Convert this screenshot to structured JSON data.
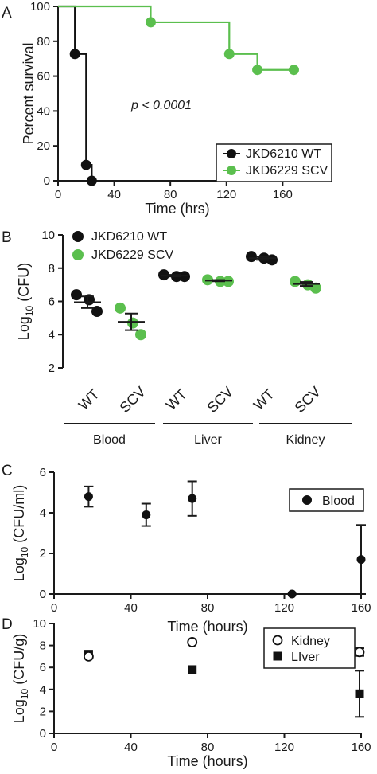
{
  "colors": {
    "wt": "#111111",
    "scv": "#5bbf4e",
    "axis": "#1a1a1a"
  },
  "panels": {
    "A": {
      "label": "A",
      "ylabel": "Percent survival",
      "xlabel": "Time (hrs)",
      "annotation": "p < 0.0001",
      "legend": [
        "JKD6210 WT",
        "JKD6229 SCV"
      ]
    },
    "B": {
      "label": "B",
      "ylabel": "Log10 (CFU)",
      "legend": [
        "JKD6210 WT",
        "JKD6229 SCV"
      ],
      "groups": [
        "Blood",
        "Liver",
        "Kidney"
      ]
    },
    "C": {
      "label": "C",
      "ylabel": "Log10 (CFU/ml)",
      "xlabel": "Time (hours)",
      "legend": [
        "Blood"
      ]
    },
    "D": {
      "label": "D",
      "ylabel": "Log10 (CFU/g)",
      "xlabel": "Time (hours)",
      "legend": [
        "Kidney",
        "LIver"
      ]
    }
  },
  "chart_data": [
    {
      "panel": "A",
      "type": "line",
      "ylabel": "Percent survival",
      "xlabel": "Time (hrs)",
      "xlim": [
        0,
        170
      ],
      "ylim": [
        0,
        100
      ],
      "xticks": [
        0,
        40,
        80,
        120,
        160
      ],
      "yticks": [
        0,
        20,
        40,
        60,
        80,
        100
      ],
      "series": [
        {
          "name": "JKD6210 WT",
          "color": "#111111",
          "steps": [
            [
              0,
              100
            ],
            [
              12,
              72.7
            ],
            [
              20,
              9.1
            ],
            [
              24,
              0
            ]
          ],
          "markers": [
            [
              12,
              72.7
            ],
            [
              20,
              9.1
            ],
            [
              24,
              0
            ]
          ]
        },
        {
          "name": "JKD6229 SCV",
          "color": "#5bbf4e",
          "steps": [
            [
              0,
              100
            ],
            [
              66,
              90.9
            ],
            [
              122,
              72.7
            ],
            [
              142,
              63.6
            ],
            [
              168,
              63.6
            ]
          ],
          "markers": [
            [
              66,
              90.9
            ],
            [
              122,
              72.7
            ],
            [
              142,
              63.6
            ],
            [
              168,
              63.6
            ]
          ]
        }
      ],
      "annotation": "p < 0.0001"
    },
    {
      "panel": "B",
      "type": "scatter",
      "ylabel": "Log10 (CFU)",
      "ylim": [
        2,
        10
      ],
      "yticks": [
        2,
        4,
        6,
        8,
        10
      ],
      "categories": [
        "WT",
        "SCV",
        "WT",
        "SCV",
        "WT",
        "SCV"
      ],
      "groups": [
        "Blood",
        "Liver",
        "Kidney"
      ],
      "series": [
        {
          "name": "JKD6210 WT",
          "color": "#111111",
          "columns": [
            0,
            2,
            4
          ],
          "points": [
            [
              6.4,
              6.1,
              5.4
            ],
            [
              7.6,
              7.5,
              7.5
            ],
            [
              8.7,
              8.6,
              8.5
            ]
          ],
          "means": [
            5.95,
            7.55,
            8.6
          ],
          "errors": [
            0.35,
            0.05,
            0.1
          ]
        },
        {
          "name": "JKD6229 SCV",
          "color": "#5bbf4e",
          "columns": [
            1,
            3,
            5
          ],
          "points": [
            [
              5.6,
              4.7,
              4.0
            ],
            [
              7.3,
              7.2,
              7.2
            ],
            [
              7.2,
              7.0,
              6.8
            ]
          ],
          "means": [
            4.77,
            7.25,
            7.05
          ],
          "errors": [
            0.5,
            0.04,
            0.12
          ]
        }
      ]
    },
    {
      "panel": "C",
      "type": "scatter",
      "ylabel": "Log10 (CFU/ml)",
      "xlabel": "Time (hours)",
      "xlim": [
        0,
        160
      ],
      "ylim": [
        0,
        6
      ],
      "xticks": [
        0,
        40,
        80,
        120,
        160
      ],
      "yticks": [
        0,
        2,
        4,
        6
      ],
      "series": [
        {
          "name": "Blood",
          "marker": "filled-circle",
          "x": [
            18,
            48,
            72,
            124,
            160
          ],
          "y": [
            4.8,
            3.9,
            4.7,
            0,
            1.7
          ],
          "err": [
            0.5,
            0.55,
            0.85,
            0,
            1.7
          ]
        }
      ]
    },
    {
      "panel": "D",
      "type": "scatter",
      "ylabel": "Log10 (CFU/g)",
      "xlabel": "Time (hours)",
      "xlim": [
        0,
        160
      ],
      "ylim": [
        0,
        10
      ],
      "xticks": [
        0,
        40,
        80,
        120,
        160
      ],
      "yticks": [
        0,
        2,
        4,
        6,
        8,
        10
      ],
      "series": [
        {
          "name": "Kidney",
          "marker": "open-circle",
          "x": [
            18,
            72,
            160
          ],
          "y": [
            7.0,
            8.3,
            7.4
          ],
          "err": [
            0,
            0,
            0.35
          ]
        },
        {
          "name": "LIver",
          "marker": "filled-square",
          "x": [
            18,
            72,
            160
          ],
          "y": [
            7.2,
            5.8,
            3.6
          ],
          "err": [
            0,
            0,
            2.1
          ]
        }
      ]
    }
  ]
}
